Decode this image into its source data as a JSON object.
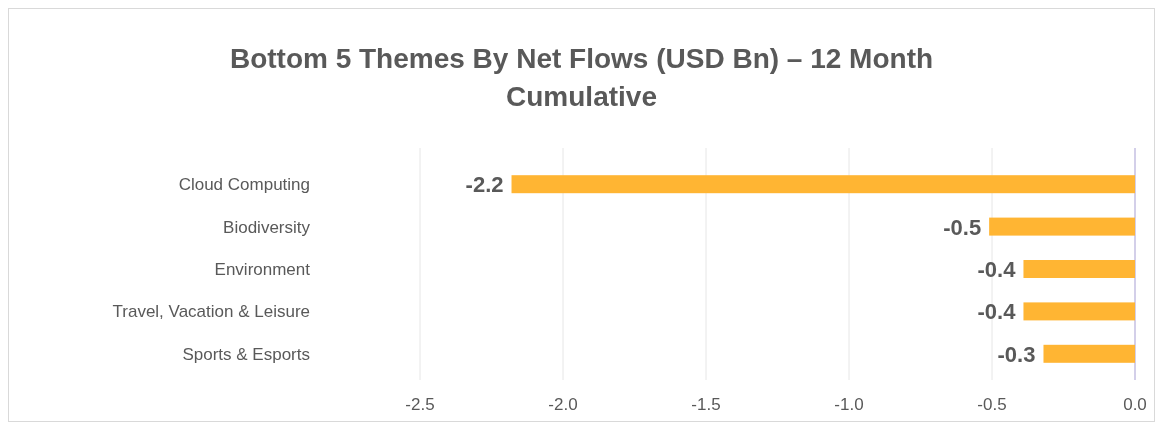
{
  "chart_data": {
    "type": "bar",
    "orientation": "horizontal",
    "title": "Bottom 5 Themes By Net Flows (USD Bn) – 12 Month Cumulative",
    "categories": [
      "Cloud Computing",
      "Biodiversity",
      "Environment",
      "Travel, Vacation & Leisure",
      "Sports & Esports"
    ],
    "values": [
      -2.18,
      -0.51,
      -0.39,
      -0.39,
      -0.32
    ],
    "value_labels": [
      "-2.2",
      "-0.5",
      "-0.4",
      "-0.4",
      "-0.3"
    ],
    "color": "#ffb533",
    "xlim": [
      -2.5,
      0
    ],
    "xticks": [
      {
        "value": -2.5,
        "label": "-2.5"
      },
      {
        "value": -2,
        "label": "-2.0"
      },
      {
        "value": -1.5,
        "label": "-1.5"
      },
      {
        "value": -1,
        "label": "-1.0"
      },
      {
        "value": -0.5,
        "label": "-0.5"
      },
      {
        "value": 0,
        "label": "0.0"
      }
    ],
    "grid": "x"
  }
}
